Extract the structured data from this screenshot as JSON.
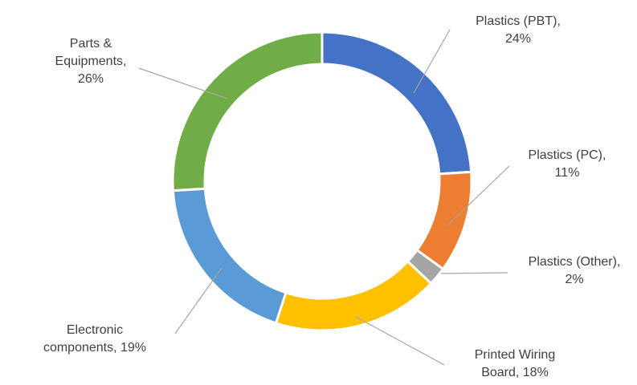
{
  "chart_data": {
    "type": "pie",
    "variant": "donut",
    "title": "",
    "start": "12 o'clock",
    "direction": "clockwise",
    "slices": [
      {
        "name": "Plastics (PBT)",
        "value": 24,
        "color": "#4472C4",
        "label_lines": [
          "Plastics (PBT),",
          "24%"
        ]
      },
      {
        "name": "Plastics (PC)",
        "value": 11,
        "color": "#ED7D31",
        "label_lines": [
          "Plastics (PC),",
          "11%"
        ]
      },
      {
        "name": "Plastics (Other)",
        "value": 2,
        "color": "#A5A5A5",
        "label_lines": [
          "Plastics (Other),",
          "2%"
        ]
      },
      {
        "name": "Printed Wiring Board",
        "value": 18,
        "color": "#FFC000",
        "label_lines": [
          "Printed Wiring",
          "Board, 18%"
        ]
      },
      {
        "name": "Electronic components",
        "value": 19,
        "color": "#5B9BD5",
        "label_lines": [
          "Electronic",
          "components, 19%"
        ]
      },
      {
        "name": "Parts & Equipments",
        "value": 26,
        "color": "#70AD47",
        "label_lines": [
          "Parts &",
          "Equipments,",
          "26%"
        ]
      }
    ]
  }
}
